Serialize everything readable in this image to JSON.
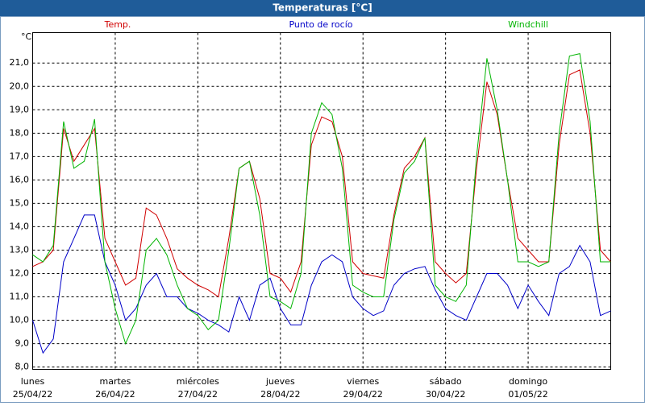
{
  "chart_data": {
    "type": "line",
    "title": "Temperaturas [°C]",
    "y_unit": "°C",
    "x": [
      0,
      3,
      6,
      9,
      12,
      15,
      18,
      21,
      24,
      27,
      30,
      33,
      36,
      39,
      42,
      45,
      48,
      51,
      54,
      57,
      60,
      63,
      66,
      69,
      72,
      75,
      78,
      81,
      84,
      87,
      90,
      93,
      96,
      99,
      102,
      105,
      108,
      111,
      114,
      117,
      120,
      123,
      126,
      129,
      132,
      135,
      138,
      141,
      144,
      147,
      150,
      153,
      156,
      159,
      162,
      165,
      168
    ],
    "xlim": [
      0,
      168
    ],
    "xticks": [
      {
        "value": 0,
        "label": "lunes",
        "date": "25/04/22"
      },
      {
        "value": 24,
        "label": "martes",
        "date": "26/04/22"
      },
      {
        "value": 48,
        "label": "miércoles",
        "date": "27/04/22"
      },
      {
        "value": 72,
        "label": "jueves",
        "date": "28/04/22"
      },
      {
        "value": 96,
        "label": "viernes",
        "date": "29/04/22"
      },
      {
        "value": 120,
        "label": "sábado",
        "date": "30/04/22"
      },
      {
        "value": 144,
        "label": "domingo",
        "date": "01/05/22"
      }
    ],
    "ylim": [
      7.9,
      22.3
    ],
    "yticks": [
      {
        "value": 8,
        "label": "8,0"
      },
      {
        "value": 9,
        "label": "9,0"
      },
      {
        "value": 10,
        "label": "10,0"
      },
      {
        "value": 11,
        "label": "11,0"
      },
      {
        "value": 12,
        "label": "12,0"
      },
      {
        "value": 13,
        "label": "13,0"
      },
      {
        "value": 14,
        "label": "14,0"
      },
      {
        "value": 15,
        "label": "15,0"
      },
      {
        "value": 16,
        "label": "16,0"
      },
      {
        "value": 17,
        "label": "17,0"
      },
      {
        "value": 18,
        "label": "18,0"
      },
      {
        "value": 19,
        "label": "19,0"
      },
      {
        "value": 20,
        "label": "20,0"
      },
      {
        "value": 21,
        "label": "21,0"
      }
    ],
    "grid": true,
    "series": [
      {
        "name": "Temp.",
        "color": "#d00000",
        "values": [
          12.3,
          12.5,
          13.0,
          18.2,
          16.8,
          17.5,
          18.2,
          13.5,
          12.5,
          11.5,
          11.8,
          14.8,
          14.5,
          13.5,
          12.2,
          11.8,
          11.5,
          11.3,
          11.0,
          13.5,
          16.5,
          16.8,
          15.2,
          12.0,
          11.8,
          11.2,
          12.5,
          17.5,
          18.7,
          18.5,
          17.0,
          12.5,
          12.0,
          11.9,
          11.8,
          14.5,
          16.5,
          17.0,
          17.8,
          12.5,
          12.0,
          11.6,
          12.0,
          16.5,
          20.2,
          18.8,
          16.0,
          13.5,
          13.0,
          12.5,
          12.5,
          17.5,
          20.5,
          20.7,
          18.0,
          13.0,
          12.5
        ]
      },
      {
        "name": "Punto de rocío",
        "color": "#0000c8",
        "values": [
          10.0,
          8.6,
          9.2,
          12.5,
          13.5,
          14.5,
          14.5,
          12.5,
          11.5,
          10.0,
          10.5,
          11.5,
          12.0,
          11.0,
          11.0,
          10.5,
          10.3,
          10.0,
          9.8,
          9.5,
          11.0,
          10.0,
          11.5,
          11.8,
          10.5,
          9.8,
          9.8,
          11.5,
          12.5,
          12.8,
          12.5,
          11.0,
          10.5,
          10.2,
          10.4,
          11.5,
          12.0,
          12.2,
          12.3,
          11.3,
          10.5,
          10.2,
          10.0,
          11.0,
          12.0,
          12.0,
          11.5,
          10.5,
          11.5,
          10.8,
          10.2,
          12.0,
          12.3,
          13.2,
          12.5,
          10.2,
          10.4
        ]
      },
      {
        "name": "Windchill",
        "color": "#00b400",
        "values": [
          12.8,
          12.5,
          13.2,
          18.5,
          16.5,
          16.8,
          18.6,
          12.5,
          10.5,
          9.0,
          10.0,
          13.0,
          13.5,
          12.8,
          11.5,
          10.5,
          10.2,
          9.6,
          10.0,
          13.0,
          16.5,
          16.8,
          14.5,
          11.0,
          10.8,
          10.5,
          12.0,
          18.0,
          19.3,
          18.8,
          16.5,
          11.5,
          11.2,
          11.0,
          11.0,
          14.3,
          16.3,
          16.8,
          17.8,
          11.5,
          11.0,
          10.8,
          11.5,
          17.0,
          21.2,
          19.0,
          16.0,
          12.5,
          12.5,
          12.3,
          12.5,
          18.0,
          21.3,
          21.4,
          18.5,
          12.5,
          12.5
        ]
      }
    ]
  }
}
